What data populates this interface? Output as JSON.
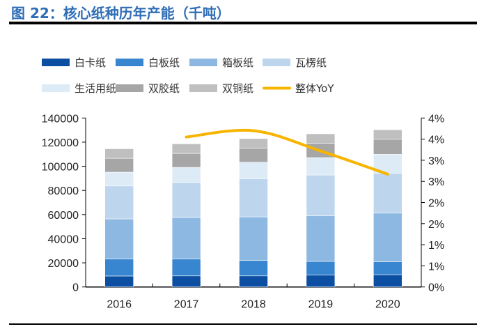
{
  "title": "图 22：核心纸种历年产能（千吨）",
  "chart_data": {
    "type": "bar",
    "stacked": true,
    "title": "图 22：核心纸种历年产能（千吨）",
    "categories": [
      "2016",
      "2017",
      "2018",
      "2019",
      "2020"
    ],
    "series": [
      {
        "name": "白卡纸",
        "color": "#0b4ea2",
        "values": [
          9100,
          9200,
          9200,
          9800,
          10200
        ]
      },
      {
        "name": "白板纸",
        "color": "#3886cf",
        "values": [
          14000,
          13900,
          12900,
          11400,
          10600
        ]
      },
      {
        "name": "箱板纸",
        "color": "#8db8e2",
        "values": [
          33300,
          34500,
          36000,
          37700,
          40400
        ]
      },
      {
        "name": "瓦楞纸",
        "color": "#bdd6ee",
        "values": [
          27300,
          29000,
          31600,
          33900,
          33100
        ]
      },
      {
        "name": "生活用纸",
        "color": "#ddebf7",
        "values": [
          11400,
          12500,
          13700,
          14400,
          15600
        ]
      },
      {
        "name": "双胶纸",
        "color": "#a6a6a6",
        "values": [
          11500,
          11600,
          11700,
          11800,
          12500
        ]
      },
      {
        "name": "双铜纸",
        "color": "#bfbfbf",
        "values": [
          7900,
          7900,
          7900,
          7900,
          7900
        ]
      }
    ],
    "line_series": {
      "name": "整体YoY",
      "color": "#f7b500",
      "axis": "right",
      "x": [
        "2017",
        "2018",
        "2019",
        "2020"
      ],
      "values": [
        3.55,
        3.7,
        3.22,
        2.67
      ]
    },
    "y_left": {
      "ylim": [
        0,
        140000
      ],
      "ticks": [
        "0",
        "20000",
        "40000",
        "60000",
        "80000",
        "100000",
        "120000",
        "140000"
      ]
    },
    "y_right": {
      "ylim": [
        0,
        4
      ],
      "ticks": [
        "0%",
        "1%",
        "1%",
        "2%",
        "2%",
        "3%",
        "3%",
        "4%",
        "4%"
      ]
    },
    "legend_placement": "top",
    "grid": false
  }
}
